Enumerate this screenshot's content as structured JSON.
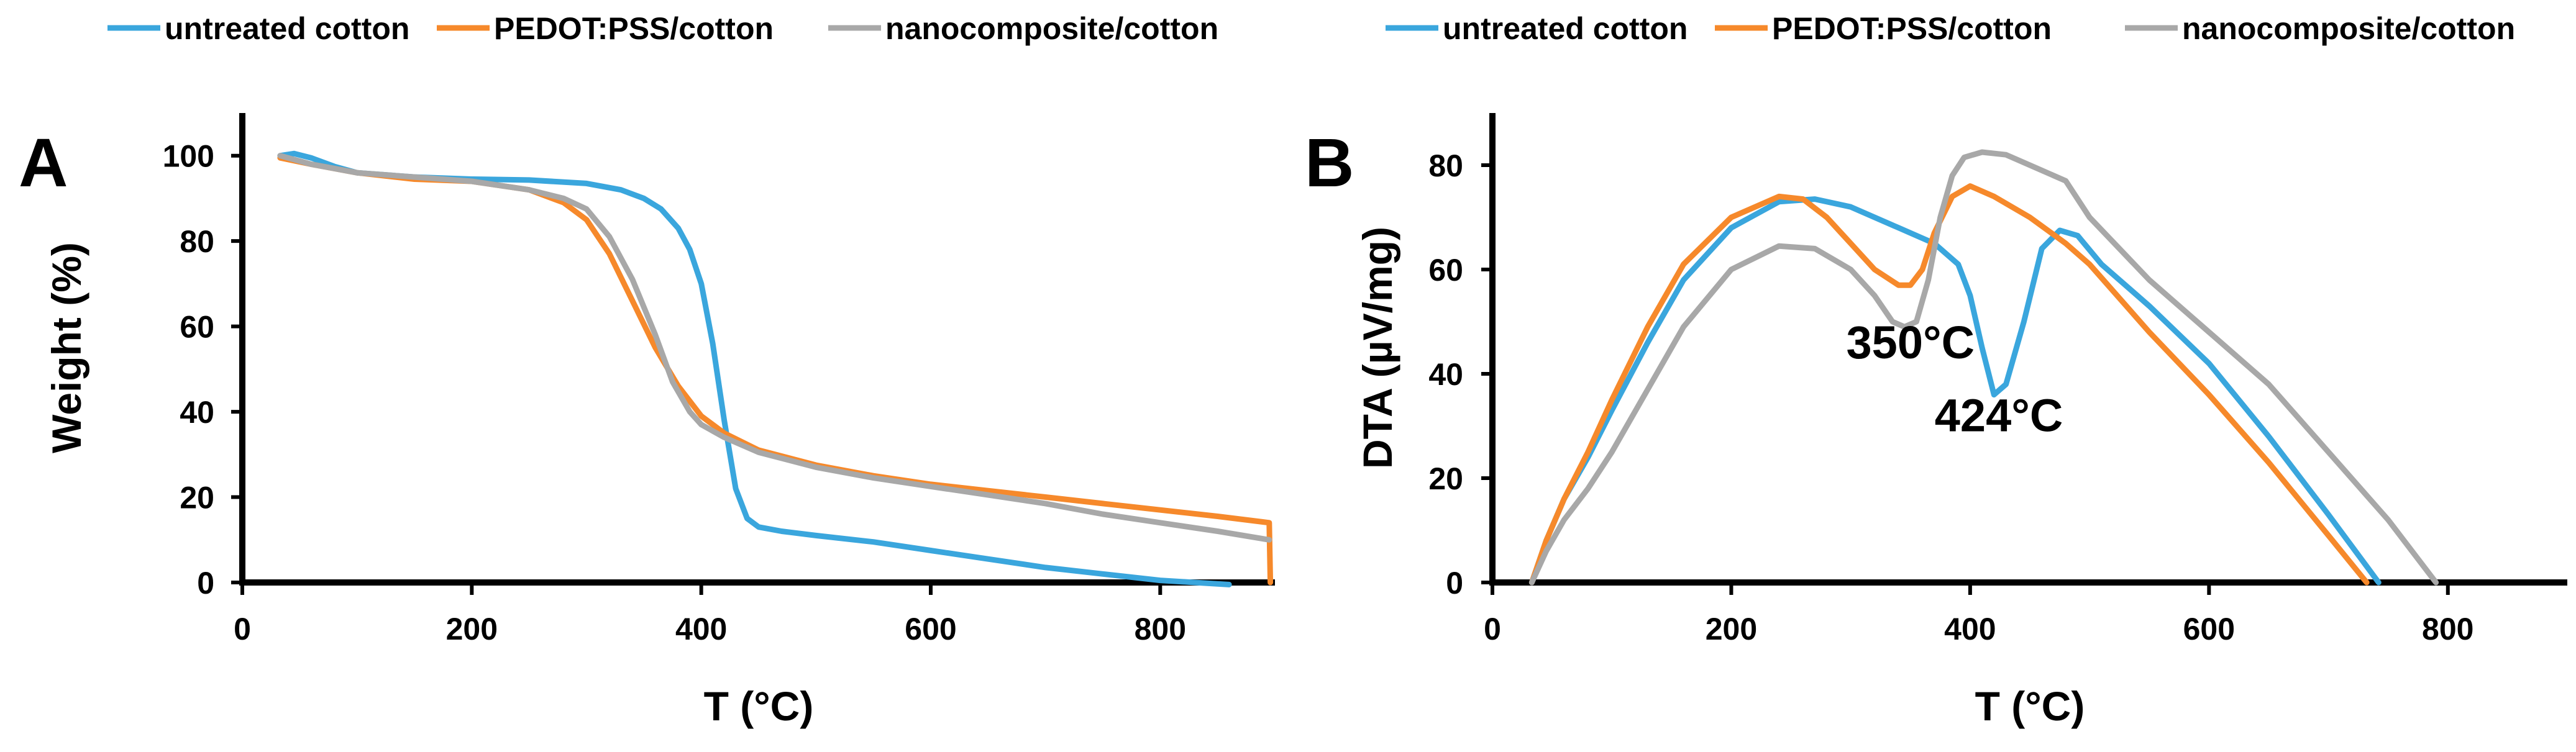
{
  "colors": {
    "untreated": "#3aa6dd",
    "pedot": "#f6892b",
    "nano": "#a8a8a8",
    "axis": "#000000"
  },
  "legend_items": [
    {
      "name": "untreated cotton",
      "color_key": "untreated"
    },
    {
      "name": "PEDOT:PSS/cotton",
      "color_key": "pedot"
    },
    {
      "name": "nanocomposite/cotton",
      "color_key": "nano"
    }
  ],
  "chart_data": [
    {
      "type": "line",
      "panel_label": "A",
      "title": "",
      "xlabel": "T (°C)",
      "ylabel": "Weight (%)",
      "xlim": [
        0,
        900
      ],
      "ylim": [
        0,
        110
      ],
      "xticks": [
        0,
        200,
        400,
        600,
        800
      ],
      "yticks": [
        0,
        20,
        40,
        60,
        80,
        100
      ],
      "legend": [
        "untreated cotton",
        "PEDOT:PSS/cotton",
        "nanocomposite/cotton"
      ],
      "legend_position": "top",
      "grid": false,
      "annotations": [],
      "series": [
        {
          "name": "untreated cotton",
          "color_key": "untreated",
          "x": [
            33,
            45,
            60,
            80,
            100,
            150,
            200,
            250,
            300,
            330,
            350,
            365,
            380,
            390,
            400,
            410,
            420,
            430,
            440,
            450,
            470,
            500,
            550,
            600,
            650,
            700,
            750,
            800,
            830,
            860
          ],
          "y": [
            100,
            100.5,
            99.5,
            97.5,
            96,
            95,
            94.5,
            94.3,
            93.5,
            92,
            90,
            87.5,
            83,
            78,
            70,
            56,
            38,
            22,
            15,
            13,
            12,
            11,
            9.5,
            7.5,
            5.5,
            3.5,
            2,
            0.5,
            0,
            -0.5
          ]
        },
        {
          "name": "PEDOT:PSS/cotton",
          "color_key": "pedot",
          "x": [
            33,
            60,
            100,
            150,
            200,
            250,
            280,
            300,
            320,
            340,
            360,
            380,
            400,
            420,
            450,
            500,
            550,
            600,
            650,
            700,
            750,
            800,
            850,
            895,
            896
          ],
          "y": [
            99.5,
            98,
            96,
            94.5,
            94,
            92,
            89,
            85,
            77,
            66,
            55,
            46,
            39,
            35,
            31,
            27.5,
            25,
            23,
            21.5,
            20,
            18.5,
            17,
            15.5,
            14,
            0
          ]
        },
        {
          "name": "nanocomposite/cotton",
          "color_key": "nano",
          "x": [
            33,
            60,
            100,
            150,
            200,
            250,
            280,
            300,
            320,
            340,
            360,
            375,
            390,
            400,
            420,
            450,
            500,
            550,
            600,
            650,
            700,
            750,
            800,
            850,
            895
          ],
          "y": [
            100,
            98,
            96,
            95,
            94,
            92,
            90,
            87.5,
            81,
            71,
            58,
            47,
            40,
            37,
            34,
            30.5,
            27,
            24.5,
            22.5,
            20.5,
            18.5,
            16,
            14,
            12,
            10
          ]
        }
      ]
    },
    {
      "type": "line",
      "panel_label": "B",
      "title": "",
      "xlabel": "T (°C)",
      "ylabel": "DTA (µV/mg)",
      "xlim": [
        0,
        900
      ],
      "ylim": [
        0,
        90
      ],
      "xticks": [
        0,
        200,
        400,
        600,
        800
      ],
      "yticks": [
        0,
        20,
        40,
        60,
        80
      ],
      "legend": [
        "untreated cotton",
        "PEDOT:PSS/cotton",
        "nanocomposite/cotton"
      ],
      "legend_position": "top",
      "grid": false,
      "annotations": [
        {
          "text": "350°C",
          "x": 350,
          "y": 43
        },
        {
          "text": "424°C",
          "x": 424,
          "y": 29
        }
      ],
      "series": [
        {
          "name": "untreated cotton",
          "color_key": "untreated",
          "x": [
            33,
            45,
            60,
            80,
            100,
            130,
            160,
            200,
            240,
            270,
            300,
            340,
            370,
            390,
            400,
            410,
            420,
            430,
            445,
            460,
            475,
            490,
            510,
            550,
            600,
            650,
            700,
            742
          ],
          "y": [
            0,
            8,
            16,
            24,
            33,
            46,
            58,
            68,
            73,
            73.5,
            72,
            68,
            65,
            61,
            55,
            45,
            36,
            38,
            50,
            64,
            67.5,
            66.5,
            61,
            53,
            42,
            28,
            13,
            0
          ]
        },
        {
          "name": "PEDOT:PSS/cotton",
          "color_key": "pedot",
          "x": [
            33,
            45,
            60,
            80,
            100,
            130,
            160,
            200,
            240,
            260,
            280,
            300,
            320,
            340,
            350,
            360,
            370,
            385,
            400,
            420,
            450,
            480,
            500,
            550,
            600,
            650,
            700,
            732
          ],
          "y": [
            0,
            8,
            16,
            25,
            35,
            49,
            61,
            70,
            74,
            73.5,
            70,
            65,
            60,
            57,
            57,
            60,
            67,
            74,
            76,
            74,
            70,
            65,
            61,
            48,
            36,
            23,
            9,
            0
          ]
        },
        {
          "name": "nanocomposite/cotton",
          "color_key": "nano",
          "x": [
            33,
            45,
            60,
            80,
            100,
            130,
            160,
            200,
            240,
            270,
            300,
            320,
            335,
            345,
            355,
            365,
            375,
            385,
            395,
            410,
            430,
            460,
            480,
            500,
            550,
            600,
            650,
            700,
            750,
            790
          ],
          "y": [
            0,
            6,
            12,
            18,
            25,
            37,
            49,
            60,
            64.5,
            64,
            60,
            55,
            50,
            49,
            50,
            58,
            70,
            78,
            81.5,
            82.5,
            82,
            79,
            77,
            70,
            58,
            48,
            38,
            25,
            12,
            0
          ]
        }
      ]
    }
  ]
}
